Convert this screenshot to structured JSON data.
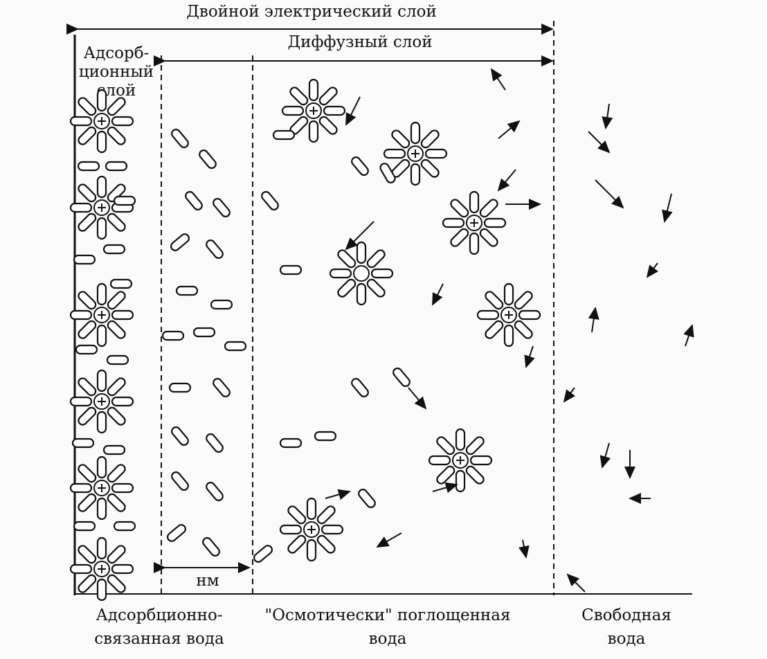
{
  "header": {
    "title": "Двойной электрический слой",
    "subtitle": "Диффузный слой"
  },
  "adsorption_layer_label": [
    "Адсорб-",
    "ционный",
    "слой"
  ],
  "scale_label": "нм",
  "zones": [
    {
      "label": [
        "Адсорбционно-",
        "связанная вода"
      ]
    },
    {
      "label": [
        "\"Осмотически\" поглощенная",
        "вода"
      ]
    },
    {
      "label": [
        "Свободная",
        "вода"
      ]
    }
  ]
}
